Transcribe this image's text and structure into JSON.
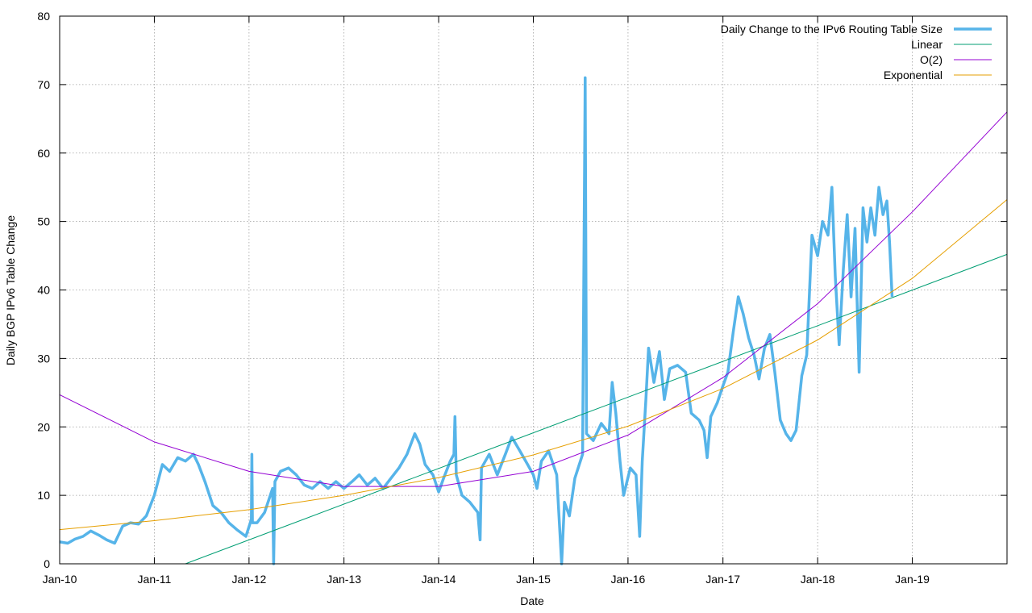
{
  "chart_data": {
    "type": "line",
    "title": "",
    "xlabel": "Date",
    "ylabel": "Daily BGP IPv6 Table Change",
    "xlim": [
      "2010-01-01",
      "2020-01-01"
    ],
    "ylim": [
      0,
      80
    ],
    "grid": true,
    "legend_position": "top-right",
    "x_ticks": [
      {
        "label": "Jan-10",
        "date": "2010-01-01"
      },
      {
        "label": "Jan-11",
        "date": "2011-01-01"
      },
      {
        "label": "Jan-12",
        "date": "2012-01-01"
      },
      {
        "label": "Jan-13",
        "date": "2013-01-01"
      },
      {
        "label": "Jan-14",
        "date": "2014-01-01"
      },
      {
        "label": "Jan-15",
        "date": "2015-01-01"
      },
      {
        "label": "Jan-16",
        "date": "2016-01-01"
      },
      {
        "label": "Jan-17",
        "date": "2017-01-01"
      },
      {
        "label": "Jan-18",
        "date": "2018-01-01"
      },
      {
        "label": "Jan-19",
        "date": "2019-01-01"
      }
    ],
    "y_ticks": [
      0,
      10,
      20,
      30,
      40,
      50,
      60,
      70,
      80
    ],
    "series": [
      {
        "name": "Daily Change to the IPv6 Routing Table Size",
        "color": "#56b4e9",
        "style": "thick",
        "points": [
          [
            "2010-01-01",
            3.2
          ],
          [
            "2010-02-01",
            3.0
          ],
          [
            "2010-03-01",
            3.6
          ],
          [
            "2010-04-01",
            4.0
          ],
          [
            "2010-05-01",
            4.8
          ],
          [
            "2010-06-01",
            4.2
          ],
          [
            "2010-07-01",
            3.5
          ],
          [
            "2010-08-01",
            3.0
          ],
          [
            "2010-09-01",
            5.5
          ],
          [
            "2010-10-01",
            6.0
          ],
          [
            "2010-11-01",
            5.8
          ],
          [
            "2010-12-01",
            7.0
          ],
          [
            "2011-01-01",
            10.0
          ],
          [
            "2011-01-15",
            12.0
          ],
          [
            "2011-02-01",
            14.5
          ],
          [
            "2011-03-01",
            13.5
          ],
          [
            "2011-04-01",
            15.5
          ],
          [
            "2011-05-01",
            15.0
          ],
          [
            "2011-06-01",
            16.0
          ],
          [
            "2011-06-20",
            14.5
          ],
          [
            "2011-07-15",
            12.0
          ],
          [
            "2011-08-15",
            8.5
          ],
          [
            "2011-09-15",
            7.5
          ],
          [
            "2011-10-15",
            6.0
          ],
          [
            "2011-11-15",
            5.0
          ],
          [
            "2011-12-20",
            4.0
          ],
          [
            "2012-01-10",
            6.5
          ],
          [
            "2012-01-12",
            16.0
          ],
          [
            "2012-01-14",
            6.0
          ],
          [
            "2012-02-01",
            6.0
          ],
          [
            "2012-03-01",
            7.5
          ],
          [
            "2012-04-01",
            11.0
          ],
          [
            "2012-04-05",
            0.0
          ],
          [
            "2012-04-10",
            12.0
          ],
          [
            "2012-05-01",
            13.5
          ],
          [
            "2012-06-01",
            14.0
          ],
          [
            "2012-07-01",
            13.0
          ],
          [
            "2012-08-01",
            11.5
          ],
          [
            "2012-09-01",
            11.0
          ],
          [
            "2012-10-01",
            12.0
          ],
          [
            "2012-11-01",
            11.0
          ],
          [
            "2012-12-01",
            12.0
          ],
          [
            "2013-01-01",
            11.0
          ],
          [
            "2013-02-01",
            12.0
          ],
          [
            "2013-03-01",
            13.0
          ],
          [
            "2013-04-01",
            11.5
          ],
          [
            "2013-05-01",
            12.5
          ],
          [
            "2013-06-01",
            11.0
          ],
          [
            "2013-07-01",
            12.5
          ],
          [
            "2013-08-01",
            14.0
          ],
          [
            "2013-09-01",
            16.0
          ],
          [
            "2013-10-01",
            19.0
          ],
          [
            "2013-10-20",
            17.5
          ],
          [
            "2013-11-10",
            14.5
          ],
          [
            "2013-12-10",
            13.0
          ],
          [
            "2014-01-01",
            10.5
          ],
          [
            "2014-01-20",
            12.5
          ],
          [
            "2014-02-15",
            15.0
          ],
          [
            "2014-03-01",
            16.0
          ],
          [
            "2014-03-05",
            21.5
          ],
          [
            "2014-03-10",
            13.0
          ],
          [
            "2014-04-01",
            10.0
          ],
          [
            "2014-05-01",
            9.0
          ],
          [
            "2014-06-01",
            7.5
          ],
          [
            "2014-06-10",
            3.5
          ],
          [
            "2014-06-15",
            14.0
          ],
          [
            "2014-07-15",
            16.0
          ],
          [
            "2014-08-15",
            13.0
          ],
          [
            "2014-09-15",
            16.0
          ],
          [
            "2014-10-10",
            18.5
          ],
          [
            "2014-11-10",
            16.5
          ],
          [
            "2014-12-10",
            14.5
          ],
          [
            "2015-01-01",
            13.0
          ],
          [
            "2015-01-15",
            11.0
          ],
          [
            "2015-02-01",
            15.0
          ],
          [
            "2015-03-01",
            16.5
          ],
          [
            "2015-04-01",
            13.0
          ],
          [
            "2015-04-20",
            0.0
          ],
          [
            "2015-05-01",
            9.0
          ],
          [
            "2015-05-20",
            7.0
          ],
          [
            "2015-06-10",
            12.5
          ],
          [
            "2015-07-10",
            16.0
          ],
          [
            "2015-07-20",
            71.0
          ],
          [
            "2015-07-25",
            19.0
          ],
          [
            "2015-08-20",
            18.0
          ],
          [
            "2015-09-20",
            20.5
          ],
          [
            "2015-10-20",
            19.0
          ],
          [
            "2015-11-01",
            26.5
          ],
          [
            "2015-11-15",
            22.0
          ],
          [
            "2015-12-01",
            15.0
          ],
          [
            "2015-12-15",
            10.0
          ],
          [
            "2016-01-10",
            14.0
          ],
          [
            "2016-02-01",
            13.0
          ],
          [
            "2016-02-15",
            4.0
          ],
          [
            "2016-02-25",
            15.0
          ],
          [
            "2016-03-10",
            24.0
          ],
          [
            "2016-03-20",
            31.5
          ],
          [
            "2016-04-10",
            26.5
          ],
          [
            "2016-05-01",
            31.0
          ],
          [
            "2016-05-20",
            24.0
          ],
          [
            "2016-06-10",
            28.5
          ],
          [
            "2016-07-10",
            29.0
          ],
          [
            "2016-08-10",
            28.0
          ],
          [
            "2016-09-01",
            22.0
          ],
          [
            "2016-10-01",
            21.0
          ],
          [
            "2016-10-20",
            19.5
          ],
          [
            "2016-11-01",
            15.5
          ],
          [
            "2016-11-15",
            21.5
          ],
          [
            "2016-12-10",
            23.5
          ],
          [
            "2017-01-01",
            26.0
          ],
          [
            "2017-01-20",
            28.0
          ],
          [
            "2017-02-10",
            34.0
          ],
          [
            "2017-03-01",
            39.0
          ],
          [
            "2017-03-20",
            36.5
          ],
          [
            "2017-04-10",
            33.0
          ],
          [
            "2017-05-01",
            30.5
          ],
          [
            "2017-05-20",
            27.0
          ],
          [
            "2017-06-10",
            31.5
          ],
          [
            "2017-07-01",
            33.5
          ],
          [
            "2017-07-20",
            28.0
          ],
          [
            "2017-08-10",
            21.0
          ],
          [
            "2017-09-01",
            19.0
          ],
          [
            "2017-09-20",
            18.0
          ],
          [
            "2017-10-10",
            19.5
          ],
          [
            "2017-11-01",
            27.5
          ],
          [
            "2017-11-20",
            30.5
          ],
          [
            "2017-12-10",
            48.0
          ],
          [
            "2018-01-01",
            45.0
          ],
          [
            "2018-01-20",
            50.0
          ],
          [
            "2018-02-10",
            48.0
          ],
          [
            "2018-02-25",
            55.0
          ],
          [
            "2018-03-10",
            42.0
          ],
          [
            "2018-03-25",
            32.0
          ],
          [
            "2018-04-10",
            43.0
          ],
          [
            "2018-04-25",
            51.0
          ],
          [
            "2018-05-10",
            39.0
          ],
          [
            "2018-05-25",
            49.0
          ],
          [
            "2018-06-10",
            28.0
          ],
          [
            "2018-06-25",
            52.0
          ],
          [
            "2018-07-10",
            47.0
          ],
          [
            "2018-07-25",
            52.0
          ],
          [
            "2018-08-10",
            48.0
          ],
          [
            "2018-08-25",
            55.0
          ],
          [
            "2018-09-10",
            51.0
          ],
          [
            "2018-09-25",
            53.0
          ],
          [
            "2018-10-05",
            47.0
          ],
          [
            "2018-10-15",
            39.0
          ]
        ]
      },
      {
        "name": "Linear",
        "color": "#009e73",
        "style": "thin",
        "points": [
          [
            "2011-05-01",
            0.0
          ],
          [
            "2020-01-01",
            45.2
          ]
        ]
      },
      {
        "name": "O(2)",
        "color": "#9400d3",
        "style": "thin",
        "points": [
          [
            "2010-01-01",
            24.7
          ],
          [
            "2011-01-01",
            17.8
          ],
          [
            "2012-01-01",
            13.5
          ],
          [
            "2013-01-01",
            11.3
          ],
          [
            "2014-01-01",
            11.3
          ],
          [
            "2015-01-01",
            13.5
          ],
          [
            "2016-01-01",
            18.8
          ],
          [
            "2017-01-01",
            27.2
          ],
          [
            "2018-01-01",
            38.0
          ],
          [
            "2019-01-01",
            51.4
          ],
          [
            "2020-01-01",
            66.0
          ]
        ]
      },
      {
        "name": "Exponential",
        "color": "#e69f00",
        "style": "thin",
        "points": [
          [
            "2010-01-01",
            5.0
          ],
          [
            "2011-01-01",
            6.3
          ],
          [
            "2012-01-01",
            7.9
          ],
          [
            "2013-01-01",
            10.0
          ],
          [
            "2014-01-01",
            12.6
          ],
          [
            "2015-01-01",
            15.9
          ],
          [
            "2016-01-01",
            20.1
          ],
          [
            "2017-01-01",
            25.6
          ],
          [
            "2018-01-01",
            32.7
          ],
          [
            "2019-01-01",
            41.7
          ],
          [
            "2020-01-01",
            53.2
          ]
        ]
      }
    ]
  }
}
